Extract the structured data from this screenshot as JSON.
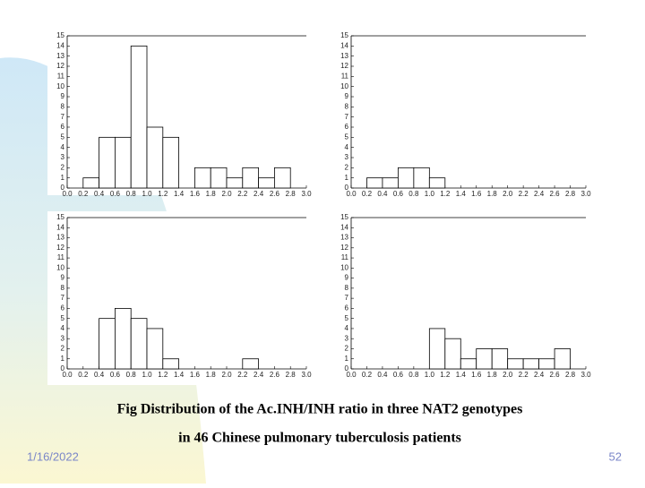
{
  "chart_data": [
    {
      "type": "histogram",
      "bins": [
        0,
        0.2,
        0.4,
        0.6,
        0.8,
        1,
        1.2,
        1.4,
        1.6,
        1.8,
        2,
        2.2,
        2.4,
        2.6,
        2.8,
        3
      ],
      "values": [
        0,
        1,
        5,
        5,
        14,
        6,
        5,
        0,
        2,
        2,
        1,
        2,
        1,
        2,
        0
      ],
      "color": "#ffffff",
      "xlim": [
        0,
        3
      ],
      "ylim": [
        0,
        15
      ],
      "xticks": [
        {
          "value": 0,
          "label": "0.0"
        },
        0.2,
        0.4,
        0.6,
        0.8,
        {
          "value": 1,
          "label": "1.0"
        },
        1.2,
        1.4,
        1.6,
        1.8,
        {
          "value": 2,
          "label": "2.0"
        },
        2.2,
        2.4,
        2.6,
        2.8,
        {
          "value": 3,
          "label": "3.0"
        }
      ],
      "yticks": [
        0,
        1,
        2,
        3,
        4,
        5,
        6,
        7,
        8,
        9,
        10,
        11,
        12,
        13,
        14,
        15
      ]
    },
    {
      "type": "histogram",
      "bins": [
        0,
        0.2,
        0.4,
        0.6,
        0.8,
        1,
        1.2,
        1.4,
        1.6,
        1.8,
        2,
        2.2,
        2.4,
        2.6,
        2.8,
        3
      ],
      "values": [
        0,
        1,
        1,
        2,
        2,
        1,
        0,
        0,
        0,
        0,
        0,
        0,
        0,
        0,
        0
      ],
      "color": "#ffffff",
      "xlim": [
        0,
        3
      ],
      "ylim": [
        0,
        15
      ],
      "xticks": [
        {
          "value": 0,
          "label": "0.0"
        },
        0.2,
        0.4,
        0.6,
        0.8,
        {
          "value": 1,
          "label": "1.0"
        },
        1.2,
        1.4,
        1.6,
        1.8,
        {
          "value": 2,
          "label": "2.0"
        },
        2.2,
        2.4,
        2.6,
        2.8,
        {
          "value": 3,
          "label": "3.0"
        }
      ],
      "yticks": [
        0,
        1,
        2,
        3,
        4,
        5,
        6,
        7,
        8,
        9,
        10,
        11,
        12,
        13,
        14,
        15
      ]
    },
    {
      "type": "histogram",
      "bins": [
        0,
        0.2,
        0.4,
        0.6,
        0.8,
        1,
        1.2,
        1.4,
        1.6,
        1.8,
        2,
        2.2,
        2.4,
        2.6,
        2.8,
        3
      ],
      "values": [
        0,
        0,
        5,
        6,
        5,
        4,
        1,
        0,
        0,
        0,
        0,
        1,
        0,
        0,
        0
      ],
      "color": "#ffffff",
      "xlim": [
        0,
        3
      ],
      "ylim": [
        0,
        15
      ],
      "xticks": [
        {
          "value": 0,
          "label": "0.0"
        },
        0.2,
        0.4,
        0.6,
        0.8,
        {
          "value": 1,
          "label": "1.0"
        },
        1.2,
        1.4,
        1.6,
        1.8,
        {
          "value": 2,
          "label": "2.0"
        },
        2.2,
        2.4,
        2.6,
        2.8,
        {
          "value": 3,
          "label": "3.0"
        }
      ],
      "yticks": [
        0,
        1,
        2,
        3,
        4,
        5,
        6,
        7,
        8,
        9,
        10,
        11,
        12,
        13,
        14,
        15
      ]
    },
    {
      "type": "histogram",
      "bins": [
        0,
        0.2,
        0.4,
        0.6,
        0.8,
        1,
        1.2,
        1.4,
        1.6,
        1.8,
        2,
        2.2,
        2.4,
        2.6,
        2.8,
        3
      ],
      "values": [
        0,
        0,
        0,
        0,
        0,
        4,
        3,
        1,
        2,
        2,
        1,
        1,
        1,
        2,
        0
      ],
      "color": "#ffffff",
      "xlim": [
        0,
        3
      ],
      "ylim": [
        0,
        15
      ],
      "xticks": [
        {
          "value": 0,
          "label": "0.0"
        },
        0.2,
        0.4,
        0.6,
        0.8,
        {
          "value": 1,
          "label": "1.0"
        },
        1.2,
        1.4,
        1.6,
        1.8,
        {
          "value": 2,
          "label": "2.0"
        },
        2.2,
        2.4,
        2.6,
        2.8,
        {
          "value": 3,
          "label": "3.0"
        }
      ],
      "yticks": [
        0,
        1,
        2,
        3,
        4,
        5,
        6,
        7,
        8,
        9,
        10,
        11,
        12,
        13,
        14,
        15
      ]
    }
  ],
  "caption": [
    "Fig  Distribution of the Ac.INH/INH ratio in three NAT2 genotypes",
    "in 46 Chinese pulmonary tuberculosis patients"
  ],
  "date": "1/16/2022",
  "page_number": "52"
}
